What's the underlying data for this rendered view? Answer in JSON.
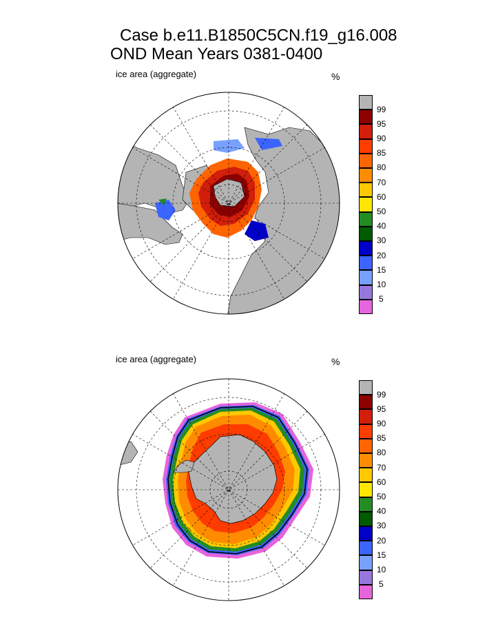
{
  "title": {
    "line1": "Case b.e11.B1850C5CN.f19_g16.008",
    "line2": "OND Mean   Years 0381-0400"
  },
  "panels": [
    {
      "id": "north",
      "label": "ice area  (aggregate)",
      "unit": "%"
    },
    {
      "id": "south",
      "label": "ice area  (aggregate)",
      "unit": "%"
    }
  ],
  "colorbar": {
    "levels": [
      "99",
      "95",
      "90",
      "85",
      "80",
      "70",
      "60",
      "50",
      "40",
      "30",
      "20",
      "15",
      "10",
      "5"
    ],
    "colors": [
      "#b4b4b4",
      "#8c0000",
      "#d21e0a",
      "#ff3c00",
      "#ff6400",
      "#ff8c00",
      "#ffc800",
      "#ffe600",
      "#238c23",
      "#005a00",
      "#0000c8",
      "#3c64ff",
      "#78a0ff",
      "#9678dc",
      "#e664dc"
    ],
    "land_color": "#b4b4b4"
  }
}
